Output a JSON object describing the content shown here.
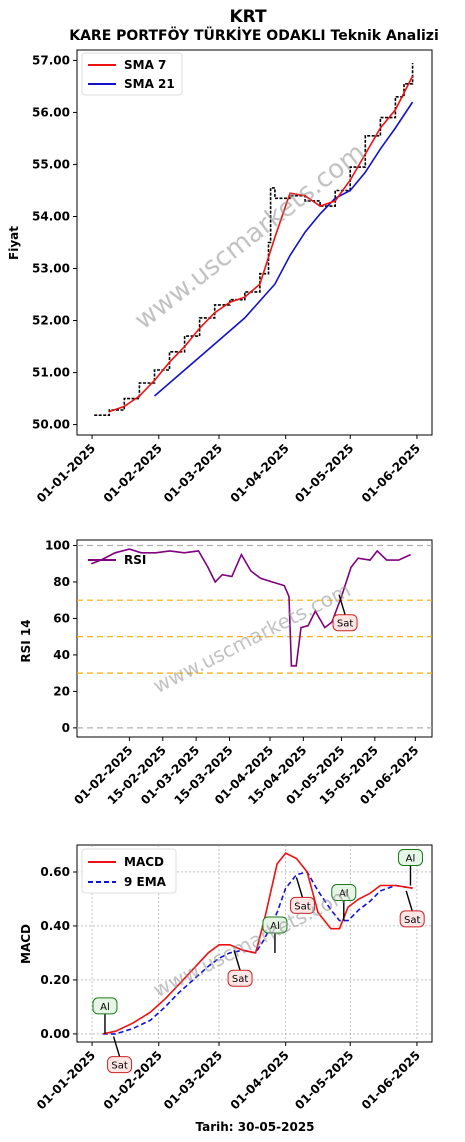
{
  "header": {
    "title": "KRT",
    "subtitle": "KARE PORTFÖY TÜRKİYE ODAKLI Teknik Analizi"
  },
  "watermark": "www.uscmarkets.com",
  "footer": {
    "date_label": "Tarih: 30-05-2025"
  },
  "colors": {
    "price": "#000000",
    "sma7": "#ee1111",
    "sma21": "#1111cc",
    "rsi": "#800080",
    "macd": "#ee1111",
    "ema9": "#1111dd",
    "orange_line": "#ffaa00",
    "gray_line": "#b0b0b0",
    "buy_border": "#1a7a1a",
    "buy_fill": "#e6f5e6",
    "sell_border": "#cc2222",
    "sell_fill": "#fde6e6"
  },
  "chart_data": [
    {
      "type": "line",
      "ylabel": "Fiyat",
      "ylim": [
        49.8,
        57.2
      ],
      "xlim": [
        "2024-12-25",
        "2025-06-08"
      ],
      "x_ticks": [
        "01-01-2025",
        "01-02-2025",
        "01-03-2025",
        "01-04-2025",
        "01-05-2025",
        "01-06-2025"
      ],
      "y_ticks": [
        "50.00",
        "51.00",
        "52.00",
        "53.00",
        "54.00",
        "55.00",
        "56.00",
        "57.00"
      ],
      "legend": {
        "position": "top-left",
        "entries": [
          "SMA 7",
          "SMA 21"
        ]
      },
      "price": {
        "x": [
          "2025-01-02",
          "2025-01-09",
          "2025-01-16",
          "2025-01-23",
          "2025-01-30",
          "2025-02-06",
          "2025-02-13",
          "2025-02-20",
          "2025-02-27",
          "2025-03-06",
          "2025-03-13",
          "2025-03-20",
          "2025-03-24",
          "2025-03-25",
          "2025-03-27",
          "2025-04-03",
          "2025-04-10",
          "2025-04-17",
          "2025-04-24",
          "2025-05-01",
          "2025-05-08",
          "2025-05-15",
          "2025-05-22",
          "2025-05-26",
          "2025-05-30"
        ],
        "values": [
          50.18,
          50.28,
          50.5,
          50.8,
          51.05,
          51.4,
          51.7,
          52.05,
          52.3,
          52.4,
          52.55,
          52.9,
          53.5,
          54.55,
          54.35,
          54.4,
          54.3,
          54.2,
          54.5,
          54.95,
          55.55,
          55.9,
          56.3,
          56.55,
          56.95
        ]
      },
      "sma7": {
        "x": [
          "2025-01-09",
          "2025-01-16",
          "2025-01-23",
          "2025-01-30",
          "2025-02-06",
          "2025-02-13",
          "2025-02-20",
          "2025-02-27",
          "2025-03-06",
          "2025-03-13",
          "2025-03-20",
          "2025-03-27",
          "2025-04-03",
          "2025-04-10",
          "2025-04-17",
          "2025-04-24",
          "2025-05-01",
          "2025-05-08",
          "2025-05-15",
          "2025-05-22",
          "2025-05-30"
        ],
        "values": [
          50.25,
          50.35,
          50.55,
          50.85,
          51.2,
          51.5,
          51.85,
          52.15,
          52.35,
          52.45,
          52.7,
          53.6,
          54.45,
          54.4,
          54.2,
          54.3,
          54.7,
          55.2,
          55.7,
          56.05,
          56.7
        ]
      },
      "sma21": {
        "x": [
          "2025-01-30",
          "2025-02-13",
          "2025-02-27",
          "2025-03-13",
          "2025-03-27",
          "2025-04-03",
          "2025-04-10",
          "2025-04-17",
          "2025-04-24",
          "2025-05-01",
          "2025-05-08",
          "2025-05-15",
          "2025-05-22",
          "2025-05-30"
        ],
        "values": [
          50.55,
          51.05,
          51.55,
          52.05,
          52.7,
          53.25,
          53.7,
          54.05,
          54.35,
          54.5,
          54.85,
          55.3,
          55.7,
          56.2
        ]
      }
    },
    {
      "type": "line",
      "ylabel": "RSI 14",
      "ylim": [
        -5,
        103
      ],
      "xlim": [
        "2025-01-10",
        "2025-06-08"
      ],
      "x_ticks": [
        "01-02-2025",
        "15-02-2025",
        "01-03-2025",
        "15-03-2025",
        "01-04-2025",
        "15-04-2025",
        "01-05-2025",
        "15-05-2025",
        "01-06-2025"
      ],
      "y_ticks": [
        "0",
        "20",
        "40",
        "60",
        "80",
        "100"
      ],
      "h_lines": [
        0,
        30,
        50,
        70,
        100
      ],
      "legend": {
        "position": "top-left",
        "entries": [
          "RSI"
        ]
      },
      "rsi": {
        "x": [
          "2025-01-16",
          "2025-01-20",
          "2025-01-26",
          "2025-02-01",
          "2025-02-06",
          "2025-02-12",
          "2025-02-18",
          "2025-02-24",
          "2025-03-02",
          "2025-03-06",
          "2025-03-09",
          "2025-03-12",
          "2025-03-16",
          "2025-03-20",
          "2025-03-24",
          "2025-03-28",
          "2025-04-02",
          "2025-04-07",
          "2025-04-09",
          "2025-04-10",
          "2025-04-12",
          "2025-04-14",
          "2025-04-17",
          "2025-04-20",
          "2025-04-24",
          "2025-04-27",
          "2025-05-01",
          "2025-05-05",
          "2025-05-08",
          "2025-05-13",
          "2025-05-16",
          "2025-05-20",
          "2025-05-25",
          "2025-05-30"
        ],
        "values": [
          90,
          92,
          96,
          98,
          96,
          96,
          97,
          96,
          97,
          88,
          80,
          84,
          83,
          95,
          86,
          82,
          80,
          78,
          72,
          34,
          34,
          55,
          56,
          64,
          55,
          58,
          72,
          88,
          93,
          92,
          97,
          92,
          92,
          95
        ]
      },
      "annotations": [
        {
          "text": "Sat",
          "type": "sell",
          "x": "2025-04-30",
          "y": 73
        }
      ]
    },
    {
      "type": "line",
      "ylabel": "MACD",
      "xlabel": "Tarih: 30-05-2025",
      "ylim": [
        -0.03,
        0.7
      ],
      "xlim": [
        "2024-12-25",
        "2025-06-08"
      ],
      "x_ticks": [
        "01-01-2025",
        "01-02-2025",
        "01-03-2025",
        "01-04-2025",
        "01-05-2025",
        "01-06-2025"
      ],
      "y_ticks": [
        "0.00",
        "0.20",
        "0.40",
        "0.60"
      ],
      "grid": true,
      "legend": {
        "position": "top-left",
        "entries": [
          "MACD",
          "9 EMA"
        ]
      },
      "macd": {
        "x": [
          "2025-01-06",
          "2025-01-12",
          "2025-01-20",
          "2025-01-28",
          "2025-02-04",
          "2025-02-10",
          "2025-02-17",
          "2025-02-24",
          "2025-03-01",
          "2025-03-06",
          "2025-03-12",
          "2025-03-18",
          "2025-03-22",
          "2025-03-28",
          "2025-04-01",
          "2025-04-06",
          "2025-04-11",
          "2025-04-16",
          "2025-04-22",
          "2025-04-26",
          "2025-04-30",
          "2025-05-05",
          "2025-05-10",
          "2025-05-15",
          "2025-05-22",
          "2025-05-30"
        ],
        "values": [
          0.0,
          0.01,
          0.04,
          0.08,
          0.13,
          0.18,
          0.24,
          0.3,
          0.33,
          0.33,
          0.31,
          0.3,
          0.42,
          0.63,
          0.67,
          0.65,
          0.6,
          0.45,
          0.39,
          0.39,
          0.47,
          0.5,
          0.52,
          0.55,
          0.55,
          0.54
        ]
      },
      "ema9": {
        "x": [
          "2025-01-06",
          "2025-01-12",
          "2025-01-20",
          "2025-01-28",
          "2025-02-04",
          "2025-02-10",
          "2025-02-17",
          "2025-02-24",
          "2025-03-01",
          "2025-03-06",
          "2025-03-12",
          "2025-03-18",
          "2025-03-22",
          "2025-03-28",
          "2025-04-01",
          "2025-04-06",
          "2025-04-11",
          "2025-04-16",
          "2025-04-22",
          "2025-04-26",
          "2025-04-30",
          "2025-05-05",
          "2025-05-10",
          "2025-05-15",
          "2025-05-22",
          "2025-05-30"
        ],
        "values": [
          0.0,
          0.0,
          0.02,
          0.05,
          0.1,
          0.15,
          0.2,
          0.25,
          0.28,
          0.3,
          0.31,
          0.3,
          0.35,
          0.45,
          0.54,
          0.59,
          0.6,
          0.53,
          0.46,
          0.42,
          0.42,
          0.46,
          0.49,
          0.53,
          0.55,
          0.54
        ]
      },
      "annotations": [
        {
          "text": "Al",
          "type": "buy",
          "x": "2025-01-07",
          "y": 0.0
        },
        {
          "text": "Sat",
          "type": "sell",
          "x": "2025-01-11",
          "y": -0.01
        },
        {
          "text": "Sat",
          "type": "sell",
          "x": "2025-03-08",
          "y": 0.31
        },
        {
          "text": "Al",
          "type": "buy",
          "x": "2025-03-27",
          "y": 0.3
        },
        {
          "text": "Sat",
          "type": "sell",
          "x": "2025-04-06",
          "y": 0.58
        },
        {
          "text": "Al",
          "type": "buy",
          "x": "2025-04-28",
          "y": 0.42
        },
        {
          "text": "Al",
          "type": "buy",
          "x": "2025-05-29",
          "y": 0.55
        },
        {
          "text": "Sat",
          "type": "sell",
          "x": "2025-05-27",
          "y": 0.53
        }
      ]
    }
  ]
}
